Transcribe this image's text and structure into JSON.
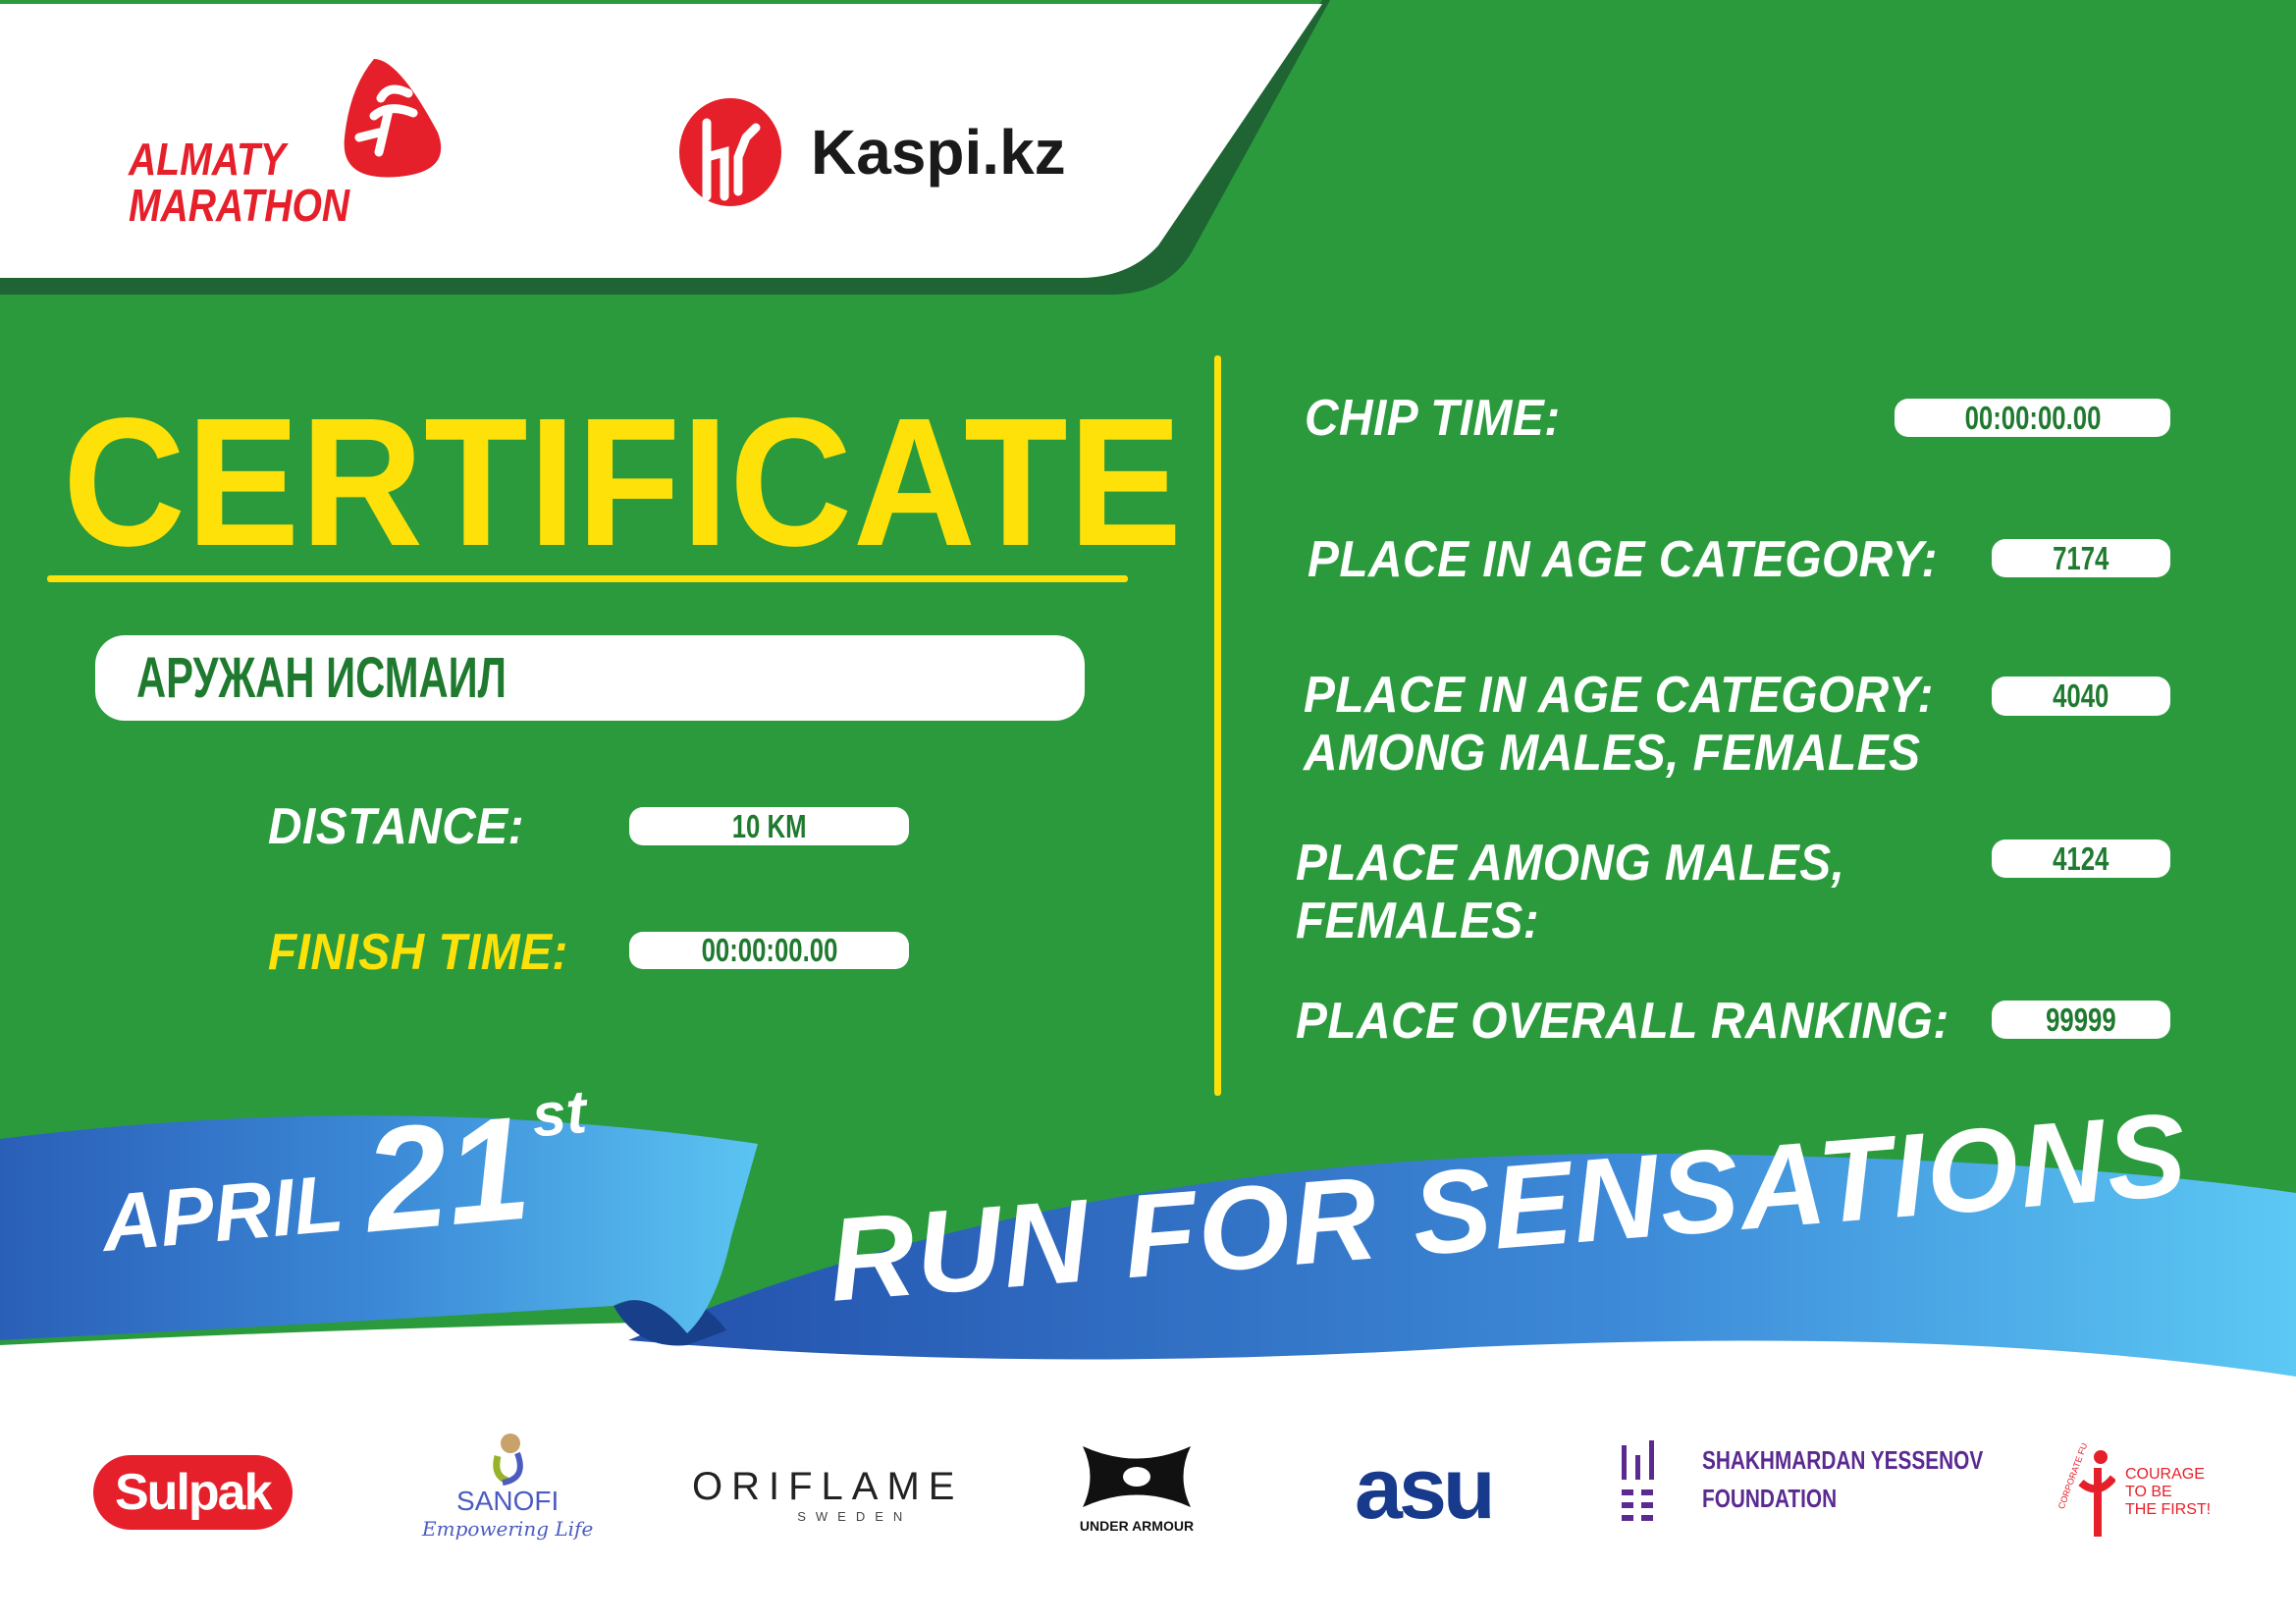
{
  "header": {
    "organizer_logo": "ALMATY MARATHON",
    "organizer_logo_line1": "ALMATY",
    "organizer_logo_line2": "MARATHON",
    "sponsor_logo": "Kaspi.kz"
  },
  "certificate": {
    "title": "CERTIFICATE",
    "participant_name": "АРУЖАН ИСМАИЛ",
    "distance_label": "DISTANCE:",
    "distance_value": "10 KM",
    "finish_time_label": "FINISH TIME:",
    "finish_time_value": "00:00:00.00",
    "chip_time_label": "CHIP TIME:",
    "chip_time_value": "00:00:00.00",
    "age_category_label": "PLACE IN AGE CATEGORY:",
    "age_category_value": "7174",
    "age_gender_label_line1": "PLACE IN AGE CATEGORY:",
    "age_gender_label_line2": "AMONG MALES, FEMALES",
    "age_gender_value": "4040",
    "gender_label_line1": "PLACE AMONG MALES,",
    "gender_label_line2": "FEMALES:",
    "gender_value": "4124",
    "overall_label": "PLACE OVERALL RANKING:",
    "overall_value": "99999"
  },
  "ribbon": {
    "month": "APRIL",
    "day": "21",
    "suffix": "st",
    "slogan": "RUN FOR SENSATIONS"
  },
  "sponsors": [
    {
      "name": "Sulpak"
    },
    {
      "name": "SANOFI",
      "tagline": "Empowering Life"
    },
    {
      "name": "ORIFLAME",
      "tagline": "SWEDEN"
    },
    {
      "name": "UNDER ARMOUR"
    },
    {
      "name": "asu"
    },
    {
      "name": "SHAKHMARDAN YESSENOV",
      "tagline": "FOUNDATION"
    },
    {
      "name": "CORPORATE FUND",
      "tagline_lines": [
        "COURAGE",
        "TO BE",
        "THE FIRST!"
      ]
    }
  ],
  "colors": {
    "green": "#2a9a3c",
    "dark_green": "#1f6433",
    "yellow": "#ffe10a",
    "red": "#e5202a",
    "blue": "#3a86d4",
    "light_blue": "#56c2f0",
    "dark_blue": "#1f4fa6"
  }
}
